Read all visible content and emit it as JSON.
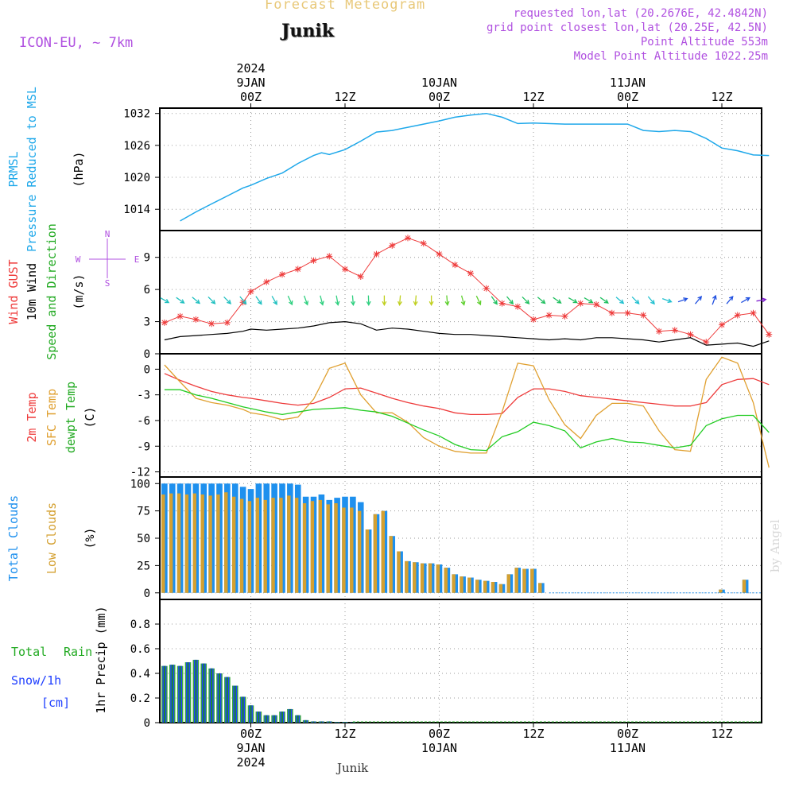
{
  "header": {
    "title": "Forecast Meteogram",
    "location": "Junik",
    "model": "ICON-EU, ~ 7km",
    "requested": "requested lon,lat (20.2676E, 42.4842N)",
    "gridpoint": "grid point closest lon,lat (20.25E, 42.5N)",
    "point_alt": "Point Altitude 553m",
    "model_alt": "Model Point Altitude 1022.25m",
    "credit": "by Angel",
    "footer": "Junik"
  },
  "time_axis": {
    "top_labels": [
      {
        "t": 0,
        "lines": [
          "2024",
          "9JAN",
          "00Z"
        ]
      },
      {
        "t": 12,
        "lines": [
          "12Z"
        ]
      },
      {
        "t": 24,
        "lines": [
          "10JAN",
          "00Z"
        ]
      },
      {
        "t": 36,
        "lines": [
          "12Z"
        ]
      },
      {
        "t": 48,
        "lines": [
          "11JAN",
          "00Z"
        ]
      },
      {
        "t": 60,
        "lines": [
          "12Z"
        ]
      }
    ],
    "bottom_labels": [
      {
        "t": 0,
        "lines": [
          "00Z",
          "9JAN",
          "2024"
        ]
      },
      {
        "t": 12,
        "lines": [
          "12Z"
        ]
      },
      {
        "t": 24,
        "lines": [
          "00Z",
          "10JAN"
        ]
      },
      {
        "t": 36,
        "lines": [
          "12Z"
        ]
      },
      {
        "t": 48,
        "lines": [
          "00Z",
          "11JAN"
        ]
      },
      {
        "t": 60,
        "lines": [
          "12Z"
        ]
      }
    ]
  },
  "panels": {
    "pressure": {
      "labels": [
        "PRMSL",
        "Pressure Reduced to MSL",
        "(hPa)"
      ],
      "ticks": [
        "1014",
        "1020",
        "1026",
        "1032"
      ]
    },
    "wind": {
      "labels": [
        "Wind GUST",
        "10m Wind",
        "Speed and Direction",
        "(m/s)"
      ],
      "ticks": [
        "0",
        "3",
        "6",
        "9"
      ],
      "compass": [
        "N",
        "S",
        "W",
        "E"
      ]
    },
    "temp": {
      "labels": [
        "2m Temp",
        "SFC Temp",
        "dewpt Temp",
        "(C)"
      ],
      "ticks": [
        "-12",
        "-9",
        "-6",
        "-3",
        "0"
      ]
    },
    "clouds": {
      "labels": [
        "Total Clouds",
        "Low Clouds",
        "(%)"
      ],
      "ticks": [
        "0",
        "25",
        "50",
        "75",
        "100"
      ]
    },
    "precip": {
      "labels": [
        "Total",
        "Rain",
        "Snow/1h",
        "[cm]",
        "1hr Precip (mm)"
      ],
      "ticks": [
        "0",
        "0.2",
        "0.4",
        "0.6",
        "0.8"
      ]
    }
  },
  "colors": {
    "pressure": "#1ea8ea",
    "gust": "#ee3b3b",
    "wind": "#000000",
    "t2m": "#ee3b3b",
    "sfc": "#e0a030",
    "dewpt": "#22cc22",
    "total_cloud": "#1e90ee",
    "low_cloud": "#d4a030",
    "rain": "#1a8a2a",
    "precip_total": "#3aaa3a",
    "snow": "#2040ff",
    "header": "#b050e0",
    "title": "#e8c878"
  },
  "chart_data": [
    {
      "type": "line",
      "title": "PRMSL Pressure Reduced to MSL",
      "ylabel": "(hPa)",
      "ylim": [
        1010,
        1033
      ],
      "x": [
        -9,
        -7,
        -5,
        -3,
        -1,
        0,
        2,
        4,
        6,
        8,
        9,
        10,
        12,
        14,
        16,
        18,
        20,
        22,
        24,
        26,
        28,
        30,
        32,
        34,
        36,
        40,
        44,
        48,
        50,
        52,
        54,
        56,
        58,
        60,
        62,
        64,
        66
      ],
      "values": [
        1011.8,
        1013.5,
        1015,
        1016.5,
        1018,
        1018.5,
        1019.8,
        1020.8,
        1022.6,
        1024.1,
        1024.6,
        1024.3,
        1025.2,
        1026.8,
        1028.5,
        1028.8,
        1029.4,
        1030,
        1030.6,
        1031.3,
        1031.7,
        1032,
        1031.3,
        1030.1,
        1030.2,
        1030,
        1030,
        1030,
        1028.8,
        1028.6,
        1028.8,
        1028.6,
        1027.3,
        1025.5,
        1025,
        1024.2,
        1024.1
      ]
    },
    {
      "type": "line",
      "title": "Wind",
      "ylabel": "(m/s)",
      "ylim": [
        0,
        11.5
      ],
      "x": [
        -11,
        -9,
        -7,
        -5,
        -3,
        -1,
        0,
        2,
        4,
        6,
        8,
        10,
        12,
        14,
        16,
        18,
        20,
        22,
        24,
        26,
        28,
        30,
        32,
        34,
        36,
        38,
        40,
        42,
        44,
        46,
        48,
        50,
        52,
        54,
        56,
        58,
        60,
        62,
        64,
        66
      ],
      "series": [
        {
          "name": "Wind GUST",
          "values": [
            2.9,
            3.5,
            3.2,
            2.8,
            2.9,
            4.8,
            5.8,
            6.7,
            7.4,
            7.9,
            8.7,
            9.1,
            7.9,
            7.2,
            9.3,
            10.1,
            10.8,
            10.3,
            9.3,
            8.3,
            7.5,
            6.1,
            4.7,
            4.4,
            3.2,
            3.6,
            3.5,
            4.7,
            4.6,
            3.8,
            3.8,
            3.6,
            2.1,
            2.2,
            1.8,
            1.1,
            2.7,
            3.6,
            3.8,
            1.8
          ]
        },
        {
          "name": "10m Wind",
          "values": [
            1.3,
            1.6,
            1.7,
            1.8,
            1.9,
            2.1,
            2.3,
            2.2,
            2.3,
            2.4,
            2.6,
            2.9,
            3.0,
            2.8,
            2.2,
            2.4,
            2.3,
            2.1,
            1.9,
            1.8,
            1.8,
            1.7,
            1.6,
            1.5,
            1.4,
            1.3,
            1.4,
            1.3,
            1.5,
            1.5,
            1.4,
            1.3,
            1.1,
            1.3,
            1.5,
            0.8,
            0.9,
            1.0,
            0.7,
            1.2
          ]
        }
      ]
    },
    {
      "type": "line",
      "title": "Temperature",
      "ylabel": "(C)",
      "ylim": [
        -12.6,
        1.8
      ],
      "x": [
        -11,
        -9,
        -7,
        -5,
        -3,
        -1,
        0,
        2,
        4,
        6,
        8,
        10,
        12,
        14,
        16,
        18,
        20,
        22,
        24,
        26,
        28,
        30,
        32,
        34,
        36,
        38,
        40,
        42,
        44,
        46,
        48,
        50,
        52,
        54,
        56,
        58,
        60,
        62,
        64,
        66
      ],
      "series": [
        {
          "name": "2m Temp",
          "values": [
            -0.5,
            -1.3,
            -2.0,
            -2.6,
            -3.0,
            -3.3,
            -3.4,
            -3.7,
            -4.0,
            -4.2,
            -4.0,
            -3.3,
            -2.3,
            -2.2,
            -2.8,
            -3.4,
            -3.9,
            -4.3,
            -4.6,
            -5.1,
            -5.3,
            -5.3,
            -5.2,
            -3.3,
            -2.3,
            -2.3,
            -2.6,
            -3.1,
            -3.3,
            -3.5,
            -3.7,
            -3.9,
            -4.1,
            -4.3,
            -4.3,
            -3.9,
            -1.8,
            -1.2,
            -1.1,
            -1.8
          ]
        },
        {
          "name": "SFC Temp",
          "values": [
            0.5,
            -1.5,
            -3.4,
            -3.9,
            -4.2,
            -4.7,
            -5.1,
            -5.4,
            -5.9,
            -5.6,
            -3.5,
            0.1,
            0.7,
            -3.0,
            -5.1,
            -5.1,
            -6.2,
            -8.0,
            -9.0,
            -9.6,
            -9.8,
            -9.8,
            -5.0,
            0.7,
            0.4,
            -3.6,
            -6.5,
            -8.1,
            -5.4,
            -4.0,
            -4.0,
            -4.3,
            -7.2,
            -9.4,
            -9.6,
            -1.2,
            1.4,
            0.7,
            -3.9,
            -11.5
          ]
        },
        {
          "name": "dewpt Temp",
          "values": [
            -2.4,
            -2.4,
            -3.0,
            -3.4,
            -3.9,
            -4.4,
            -4.6,
            -5.0,
            -5.3,
            -5.0,
            -4.7,
            -4.6,
            -4.5,
            -4.8,
            -5.0,
            -5.5,
            -6.3,
            -7.1,
            -7.8,
            -8.8,
            -9.4,
            -9.5,
            -7.9,
            -7.3,
            -6.2,
            -6.6,
            -7.2,
            -9.2,
            -8.5,
            -8.1,
            -8.5,
            -8.6,
            -8.9,
            -9.2,
            -8.9,
            -6.6,
            -5.8,
            -5.4,
            -5.4,
            -7.4
          ]
        }
      ]
    },
    {
      "type": "bar",
      "title": "Clouds",
      "ylabel": "(%)",
      "ylim": [
        0,
        100
      ],
      "x": [
        -11,
        -10,
        -9,
        -8,
        -7,
        -6,
        -5,
        -4,
        -3,
        -2,
        -1,
        0,
        1,
        2,
        3,
        4,
        5,
        6,
        7,
        8,
        9,
        10,
        11,
        12,
        13,
        14,
        15,
        16,
        17,
        18,
        19,
        20,
        21,
        22,
        23,
        24,
        25,
        26,
        27,
        28,
        29,
        30,
        31,
        32,
        33,
        34,
        35,
        36,
        37,
        38,
        60,
        63
      ],
      "series": [
        {
          "name": "Total Clouds",
          "values": [
            100,
            100,
            100,
            100,
            100,
            100,
            100,
            100,
            100,
            100,
            97,
            95,
            100,
            100,
            100,
            100,
            100,
            99,
            88,
            88,
            90,
            85,
            87,
            88,
            88,
            83,
            58,
            72,
            75,
            52,
            38,
            29,
            28,
            27,
            27,
            26,
            23,
            17,
            15,
            14,
            12,
            11,
            10,
            8,
            17,
            23,
            22,
            22,
            9,
            0,
            3,
            12
          ]
        },
        {
          "name": "Low Clouds",
          "values": [
            90,
            91,
            91,
            90,
            91,
            90,
            89,
            90,
            92,
            88,
            86,
            84,
            87,
            85,
            87,
            87,
            89,
            87,
            82,
            84,
            85,
            81,
            82,
            78,
            78,
            75,
            58,
            72,
            75,
            52,
            38,
            29,
            28,
            27,
            27,
            26,
            23,
            17,
            15,
            14,
            12,
            11,
            10,
            8,
            17,
            23,
            22,
            22,
            9,
            0,
            3,
            12
          ]
        }
      ]
    },
    {
      "type": "bar",
      "title": "1hr Precip",
      "ylabel": "1hr Precip (mm)",
      "ylim": [
        0,
        1
      ],
      "x": [
        -11,
        -10,
        -9,
        -8,
        -7,
        -6,
        -5,
        -4,
        -3,
        -2,
        -1,
        0,
        1,
        2,
        3,
        4,
        5,
        6,
        7,
        8,
        9,
        10,
        11,
        12,
        13
      ],
      "series": [
        {
          "name": "Total",
          "values": [
            0.46,
            0.47,
            0.46,
            0.49,
            0.51,
            0.48,
            0.44,
            0.4,
            0.37,
            0.3,
            0.21,
            0.14,
            0.09,
            0.06,
            0.06,
            0.09,
            0.11,
            0.06,
            0.02,
            0.01,
            0.01,
            0.01,
            0.005,
            0.005,
            0.003
          ]
        },
        {
          "name": "Rain",
          "values": [
            0.46,
            0.47,
            0.46,
            0.49,
            0.51,
            0.48,
            0.44,
            0.4,
            0.37,
            0.3,
            0.21,
            0.14,
            0.09,
            0.06,
            0.06,
            0.09,
            0.11,
            0.06,
            0.02,
            0.01,
            0.01,
            0.01,
            0.005,
            0.005,
            0.003
          ]
        },
        {
          "name": "Snow/1h",
          "values": [
            0.46,
            0.47,
            0.46,
            0.49,
            0.51,
            0.48,
            0.44,
            0.4,
            0.37,
            0.3,
            0.21,
            0.14,
            0.09,
            0.06,
            0.06,
            0.09,
            0.11,
            0.06,
            0.02,
            0.01,
            0.01,
            0.01,
            0.005,
            0.005,
            0.003
          ]
        }
      ]
    },
    {
      "type": "scatter",
      "title": "10m Wind Direction",
      "x": [
        -11,
        -9,
        -7,
        -5,
        -3,
        -1,
        1,
        3,
        5,
        7,
        9,
        11,
        13,
        15,
        17,
        19,
        21,
        23,
        25,
        27,
        29,
        31,
        33,
        35,
        37,
        39,
        41,
        43,
        45,
        47,
        49,
        51,
        53,
        55,
        57,
        59,
        61,
        63,
        65
      ],
      "direction_deg": [
        300,
        305,
        310,
        315,
        315,
        320,
        325,
        330,
        335,
        340,
        345,
        350,
        355,
        358,
        0,
        5,
        5,
        0,
        355,
        345,
        335,
        325,
        320,
        315,
        310,
        305,
        300,
        300,
        305,
        310,
        315,
        320,
        290,
        250,
        220,
        200,
        220,
        240,
        260
      ]
    }
  ]
}
